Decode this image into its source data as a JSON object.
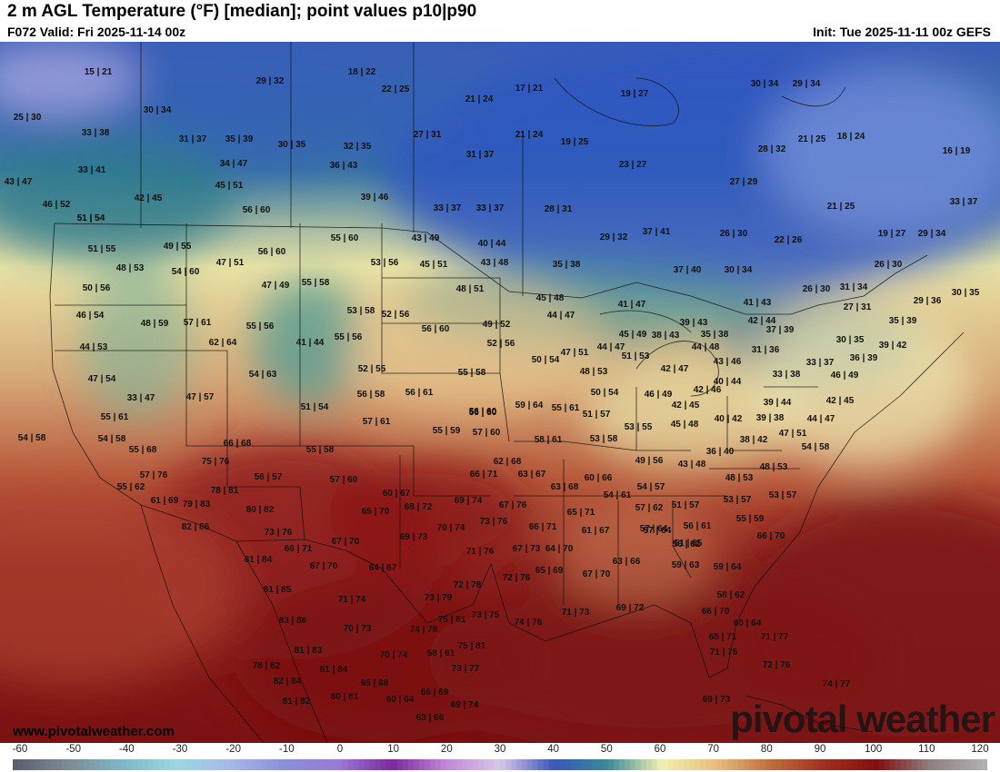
{
  "header": {
    "title": "2 m AGL Temperature (°F) [median]; point values p10|p90",
    "valid": "F072 Valid: Fri 2025-11-14 00z",
    "init": "Init: Tue 2025-11-11 00z GEFS"
  },
  "footer": {
    "website": "www.pivotalweather.com",
    "brand": "pivotal weather"
  },
  "colorbar": {
    "ticks": [
      "-60",
      "-50",
      "-40",
      "-30",
      "-20",
      "-10",
      "0",
      "10",
      "20",
      "30",
      "40",
      "50",
      "60",
      "70",
      "80",
      "90",
      "100",
      "110",
      "120"
    ],
    "colors": [
      "#5a6070",
      "#7d8c96",
      "#7fb8c8",
      "#9ad8e0",
      "#a8b8e8",
      "#8890d8",
      "#9a7ad8",
      "#7a2a9a",
      "#c088d8",
      "#d8c8e8",
      "#3a56b8",
      "#3a8a9a",
      "#f0f0b0",
      "#e8c080",
      "#c07040",
      "#a03020",
      "#801010",
      "#908080",
      "#b0b0b0"
    ]
  },
  "point_values": [
    "15|21",
    "29|32",
    "18|22",
    "22|25",
    "21|24",
    "17|21",
    "19|27",
    "30|34",
    "29|34",
    "25|30",
    "30|34",
    "33|38",
    "31|37",
    "35|39",
    "30|35",
    "32|35",
    "27|31",
    "21|24",
    "19|25",
    "28|32",
    "21|25",
    "18|24",
    "16|19",
    "33|41",
    "34|47",
    "36|43",
    "31|37",
    "23|27",
    "27|29",
    "43|47",
    "42|45",
    "45|51",
    "39|46",
    "46|52",
    "51|54",
    "51|54",
    "56|60",
    "33|37",
    "33|37",
    "28|31",
    "21|25",
    "33|37",
    "55|60",
    "43|49",
    "40|44",
    "29|32",
    "37|41",
    "26|30",
    "22|26",
    "19|27",
    "29|34",
    "51|55",
    "49|55",
    "56|60",
    "53|56",
    "45|51",
    "43|48",
    "35|38",
    "48|53",
    "54|60",
    "47|51",
    "26|30",
    "50|56",
    "47|49",
    "55|58",
    "48|51",
    "45|48",
    "37|40",
    "30|34",
    "26|30",
    "31|34",
    "29|36",
    "30|35",
    "46|54",
    "53|58",
    "52|56",
    "41|47",
    "41|43",
    "27|31",
    "48|59",
    "57|61",
    "55|56",
    "44|47",
    "39|43",
    "42|44",
    "35|39",
    "56|60",
    "49|52",
    "45|49",
    "38|43",
    "35|38",
    "37|39",
    "44|53",
    "62|64",
    "41|44",
    "55|56",
    "52|56",
    "47|51",
    "44|47",
    "51|53",
    "44|48",
    "31|36",
    "30|35",
    "39|42",
    "52|55",
    "47|54",
    "54|63",
    "55|58",
    "50|54",
    "48|53",
    "42|47",
    "43|46",
    "33|38",
    "33|37",
    "36|39",
    "46|49",
    "40|44",
    "56|60",
    "33|47",
    "47|57",
    "56|58",
    "56|61",
    "59|64",
    "55|61",
    "50|54",
    "46|49",
    "42|46",
    "39|44",
    "42|45",
    "55|61",
    "51|54",
    "51|57",
    "42|45",
    "57|61",
    "56|60",
    "45|48",
    "40|42",
    "39|38",
    "44|47",
    "54|58",
    "55|59",
    "57|60",
    "58|61",
    "53|55",
    "53|58",
    "38|42",
    "47|51",
    "66|68",
    "55|58",
    "54|58",
    "55|68",
    "49|56",
    "43|48",
    "36|40",
    "54|58",
    "75|76",
    "62|68",
    "48|53",
    "57|76",
    "56|57",
    "57|64",
    "66|71",
    "63|67",
    "60|66",
    "48|53",
    "78|81",
    "57|60",
    "60|67",
    "63|68",
    "54|61",
    "54|57",
    "53|57",
    "55|62",
    "61|69",
    "79|83",
    "80|82",
    "65|70",
    "68|72",
    "69|74",
    "67|76",
    "65|71",
    "57|62",
    "51|57",
    "53|57",
    "73|76",
    "70|74",
    "73|76",
    "66|71",
    "57|64",
    "56|61",
    "55|59",
    "66|70",
    "82|86",
    "67|70",
    "69|73",
    "61|67",
    "56|62",
    "81|84",
    "66|71",
    "71|76",
    "67|73",
    "64|70",
    "51|65",
    "67|70",
    "64|67",
    "63|66",
    "59|63",
    "59|64",
    "72|78",
    "72|76",
    "65|69",
    "67|70",
    "81|85",
    "71|74",
    "73|79",
    "58|62",
    "83|86",
    "75|81",
    "73|75",
    "74|76",
    "71|73",
    "69|72",
    "66|70",
    "60|64",
    "70|73",
    "74|78",
    "68|71",
    "71|75",
    "71|77",
    "81|83",
    "70|74",
    "58|61",
    "75|81",
    "78|82",
    "81|84",
    "73|77",
    "72|76",
    "82|84",
    "65|68",
    "74|77",
    "66|69",
    "80|81",
    "60|64",
    "81|82",
    "69|74",
    "69|73",
    "63|66"
  ]
}
